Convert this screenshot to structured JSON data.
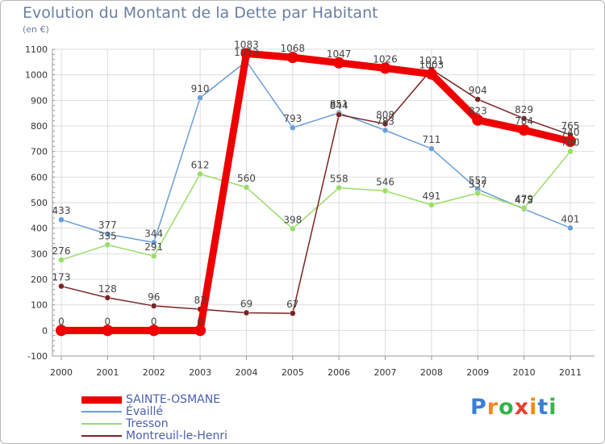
{
  "chart_data": {
    "type": "line",
    "title": "Evolution du Montant de la Dette par Habitant",
    "subtitle": "(en €)",
    "xlabel": "",
    "ylabel": "",
    "x": [
      "2000",
      "2001",
      "2002",
      "2003",
      "2004",
      "2005",
      "2006",
      "2007",
      "2008",
      "2009",
      "2010",
      "2011"
    ],
    "ylim": [
      -100,
      1100
    ],
    "yticks": [
      -100,
      0,
      100,
      200,
      300,
      400,
      500,
      600,
      700,
      800,
      900,
      1000,
      1100
    ],
    "legend_position": "bottom-left",
    "series": [
      {
        "name": "SAINTE-OSMANE",
        "color": "#ee0000",
        "emphasis": true,
        "values": [
          0,
          0,
          0,
          0,
          1083,
          1068,
          1047,
          1026,
          1003,
          823,
          784,
          740
        ]
      },
      {
        "name": "Évaillé",
        "color": "#6a9ed8",
        "values": [
          433,
          377,
          344,
          910,
          1053,
          793,
          851,
          783,
          711,
          552,
          475,
          401
        ]
      },
      {
        "name": "Tresson",
        "color": "#99dd66",
        "values": [
          276,
          335,
          291,
          612,
          560,
          398,
          558,
          546,
          491,
          537,
          479,
          700
        ]
      },
      {
        "name": "Montreuil-le-Henri",
        "color": "#7a2323",
        "values": [
          173,
          128,
          96,
          83,
          69,
          67,
          844,
          808,
          1021,
          904,
          829,
          765
        ]
      }
    ]
  },
  "legend": {
    "items": [
      "SAINTE-OSMANE",
      "Évaillé",
      "Tresson",
      "Montreuil-le-Henri"
    ]
  },
  "brand": {
    "logo": "Proxiti",
    "colors": [
      "#3a7fd5",
      "#f08a1c",
      "#35b34a",
      "#e8402c",
      "#f08a1c",
      "#3a7fd5",
      "#35b34a"
    ]
  }
}
